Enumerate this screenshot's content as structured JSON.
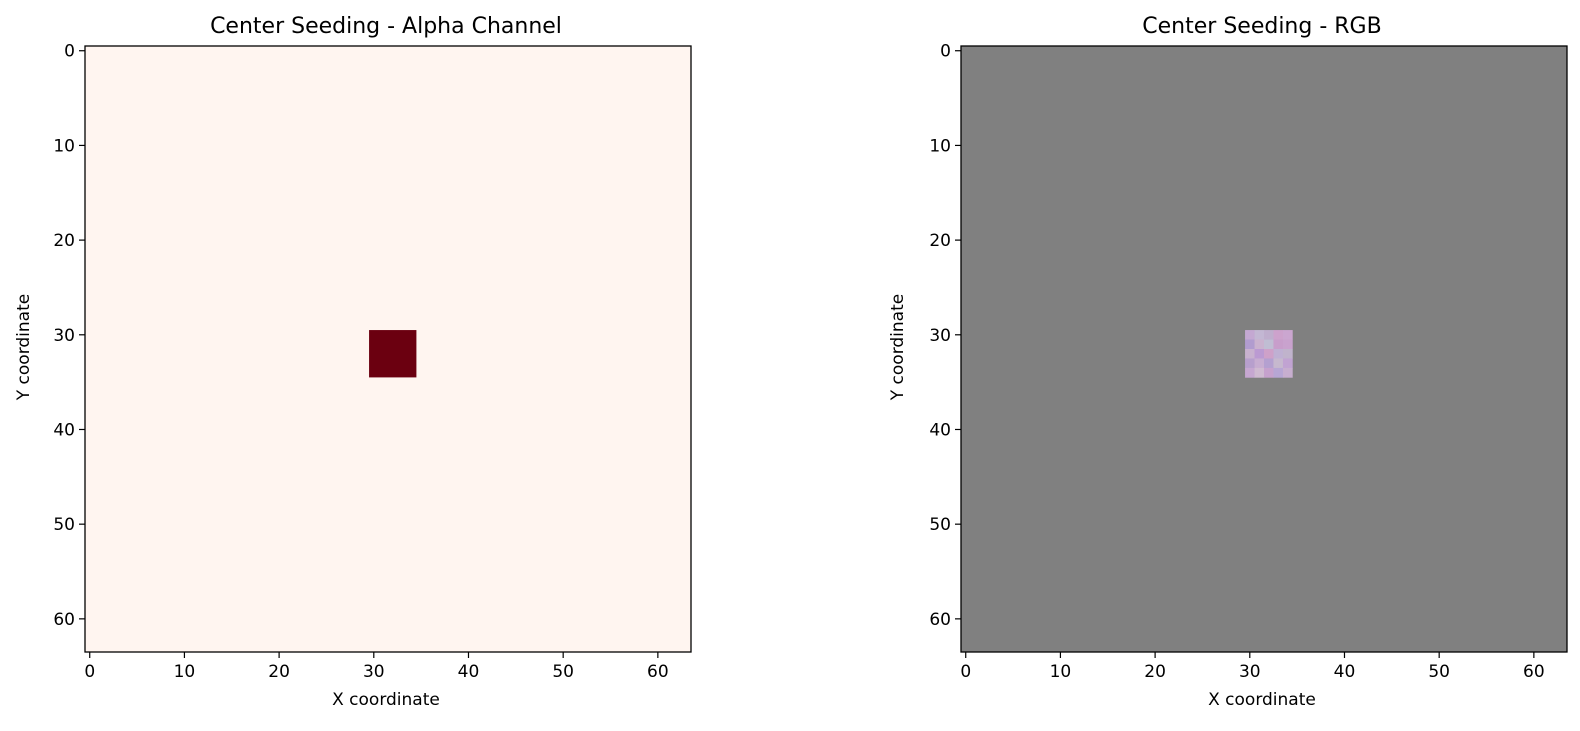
{
  "chart_data": [
    {
      "type": "heatmap",
      "title": "Center Seeding - Alpha Channel",
      "xlabel": "X coordinate",
      "ylabel": "Y coordinate",
      "xlim": [
        -0.5,
        63.5
      ],
      "ylim": [
        63.5,
        -0.5
      ],
      "y_inverted": true,
      "grid": false,
      "xticks": [
        0,
        10,
        20,
        30,
        40,
        50,
        60
      ],
      "yticks": [
        0,
        10,
        20,
        30,
        40,
        50,
        60
      ],
      "image_size": [
        64,
        64
      ],
      "colormap": "Reds",
      "background_value": 0,
      "background_color": "#fff5f0",
      "seed_region": {
        "x_range": [
          30,
          34
        ],
        "y_range": [
          30,
          34
        ],
        "value": 1,
        "color": "#6b0010"
      }
    },
    {
      "type": "heatmap",
      "title": "Center Seeding - RGB",
      "xlabel": "X coordinate",
      "ylabel": "Y coordinate",
      "xlim": [
        -0.5,
        63.5
      ],
      "ylim": [
        63.5,
        -0.5
      ],
      "y_inverted": true,
      "grid": false,
      "xticks": [
        0,
        10,
        20,
        30,
        40,
        50,
        60
      ],
      "yticks": [
        0,
        10,
        20,
        30,
        40,
        50,
        60
      ],
      "image_size": [
        64,
        64
      ],
      "background_color": "#808080",
      "seed_region": {
        "x_range": [
          30,
          34
        ],
        "y_range": [
          30,
          34
        ],
        "pixels": [
          [
            "#c4a8d2",
            "#c3b7d3",
            "#bfaecd",
            "#cda2cc",
            "#cba6d0"
          ],
          [
            "#b19ccf",
            "#cab2cf",
            "#c0bdd3",
            "#c89ecb",
            "#c9a2ce"
          ],
          [
            "#c8b1cf",
            "#bb9ad2",
            "#cea1c9",
            "#bfb0d3",
            "#c0b3cc"
          ],
          [
            "#b79fcd",
            "#c7add1",
            "#b4a0d0",
            "#c6b8ce",
            "#c1a3d2"
          ],
          [
            "#c6a7d1",
            "#cfbad1",
            "#c6a1cd",
            "#b7a6d4",
            "#c7aecf"
          ]
        ]
      }
    }
  ]
}
